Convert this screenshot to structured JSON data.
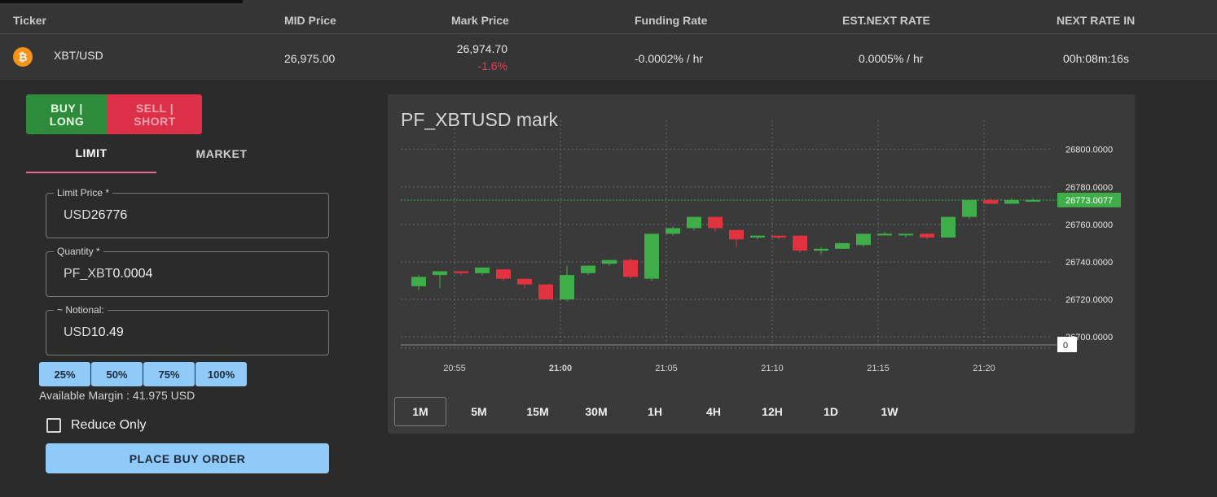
{
  "ticker": {
    "headers": {
      "ticker": "Ticker",
      "mid": "MID Price",
      "mark": "Mark Price",
      "funding": "Funding Rate",
      "est_next": "EST.NEXT RATE",
      "next_in": "NEXT RATE IN"
    },
    "row": {
      "icon_glyph": "₿",
      "symbol": "XBT/USD",
      "mid_price": "26,975.00",
      "mark_price": "26,974.70",
      "mark_change": "-1.6%",
      "funding_rate": "-0.0002% / hr",
      "est_next_rate": "0.0005% / hr",
      "next_rate_in": "00h:08m:16s"
    }
  },
  "order": {
    "buy_label": "BUY | LONG",
    "sell_label": "SELL | SHORT",
    "tab_limit": "LIMIT",
    "tab_market": "MARKET",
    "limit_price": {
      "label": "Limit Price *",
      "prefix": "USD",
      "value": "26776"
    },
    "quantity": {
      "label": "Quantity *",
      "prefix": "PF_XBT",
      "value": "0.0004"
    },
    "notional": {
      "label": "~ Notional:",
      "prefix": "USD",
      "value": "10.49"
    },
    "pct_buttons": [
      "25%",
      "50%",
      "75%",
      "100%"
    ],
    "available_margin": "Available Margin : 41.975 USD",
    "reduce_only": "Reduce Only",
    "place_button": "PLACE BUY ORDER"
  },
  "chart": {
    "title": "PF_XBTUSD mark",
    "timeframes": [
      "1M",
      "5M",
      "15M",
      "30M",
      "1H",
      "4H",
      "12H",
      "1D",
      "1W"
    ],
    "active_timeframe": "1M"
  },
  "colors": {
    "up": "#3fae49",
    "down": "#e0323f",
    "price_tag": "#3fae49"
  },
  "chart_data": {
    "type": "candlestick",
    "title": "PF_XBTUSD mark",
    "x_ticks": [
      "20:55",
      "21:00",
      "21:05",
      "21:10",
      "21:15",
      "21:20"
    ],
    "x_tick_minutes": [
      4,
      9,
      14,
      19,
      24,
      29
    ],
    "y_ticks": [
      "26700.0000",
      "26720.0000",
      "26740.0000",
      "26760.0000",
      "26780.0000",
      "26800.0000"
    ],
    "y_tick_values": [
      26700,
      26720,
      26740,
      26760,
      26780,
      26800
    ],
    "ylim": [
      26694,
      26812
    ],
    "last_price_label": "26773.0077",
    "last_price": 26773.0077,
    "volume_label": "0",
    "candles": [
      {
        "o": 26727,
        "h": 26733,
        "l": 26725,
        "c": 26732
      },
      {
        "o": 26733,
        "h": 26735,
        "l": 26726,
        "c": 26735
      },
      {
        "o": 26735,
        "h": 26735,
        "l": 26733,
        "c": 26734
      },
      {
        "o": 26734,
        "h": 26737,
        "l": 26733,
        "c": 26737
      },
      {
        "o": 26736,
        "h": 26736,
        "l": 26730,
        "c": 26731
      },
      {
        "o": 26731,
        "h": 26731,
        "l": 26726,
        "c": 26728
      },
      {
        "o": 26728,
        "h": 26728,
        "l": 26720,
        "c": 26720
      },
      {
        "o": 26720,
        "h": 26738,
        "l": 26719,
        "c": 26733
      },
      {
        "o": 26734,
        "h": 26738,
        "l": 26733,
        "c": 26738
      },
      {
        "o": 26739,
        "h": 26741,
        "l": 26738,
        "c": 26741
      },
      {
        "o": 26741,
        "h": 26742,
        "l": 26731,
        "c": 26732
      },
      {
        "o": 26731,
        "h": 26755,
        "l": 26730,
        "c": 26755
      },
      {
        "o": 26755,
        "h": 26759,
        "l": 26754,
        "c": 26758
      },
      {
        "o": 26758,
        "h": 26764,
        "l": 26757,
        "c": 26764
      },
      {
        "o": 26764,
        "h": 26764,
        "l": 26756,
        "c": 26758
      },
      {
        "o": 26757,
        "h": 26757,
        "l": 26748,
        "c": 26752
      },
      {
        "o": 26753,
        "h": 26754,
        "l": 26752,
        "c": 26754
      },
      {
        "o": 26754,
        "h": 26754,
        "l": 26752,
        "c": 26753
      },
      {
        "o": 26754,
        "h": 26754,
        "l": 26745,
        "c": 26746
      },
      {
        "o": 26746,
        "h": 26748,
        "l": 26744,
        "c": 26747
      },
      {
        "o": 26747,
        "h": 26750,
        "l": 26747,
        "c": 26750
      },
      {
        "o": 26749,
        "h": 26755,
        "l": 26748,
        "c": 26755
      },
      {
        "o": 26755,
        "h": 26756,
        "l": 26754,
        "c": 26755
      },
      {
        "o": 26755,
        "h": 26755,
        "l": 26753,
        "c": 26755
      },
      {
        "o": 26755,
        "h": 26755,
        "l": 26752,
        "c": 26753
      },
      {
        "o": 26753,
        "h": 26764,
        "l": 26753,
        "c": 26764
      },
      {
        "o": 26764,
        "h": 26773,
        "l": 26763,
        "c": 26773
      },
      {
        "o": 26773,
        "h": 26774,
        "l": 26771,
        "c": 26771
      },
      {
        "o": 26771,
        "h": 26774,
        "l": 26771,
        "c": 26773
      },
      {
        "o": 26773,
        "h": 26774,
        "l": 26772,
        "c": 26773
      }
    ]
  }
}
